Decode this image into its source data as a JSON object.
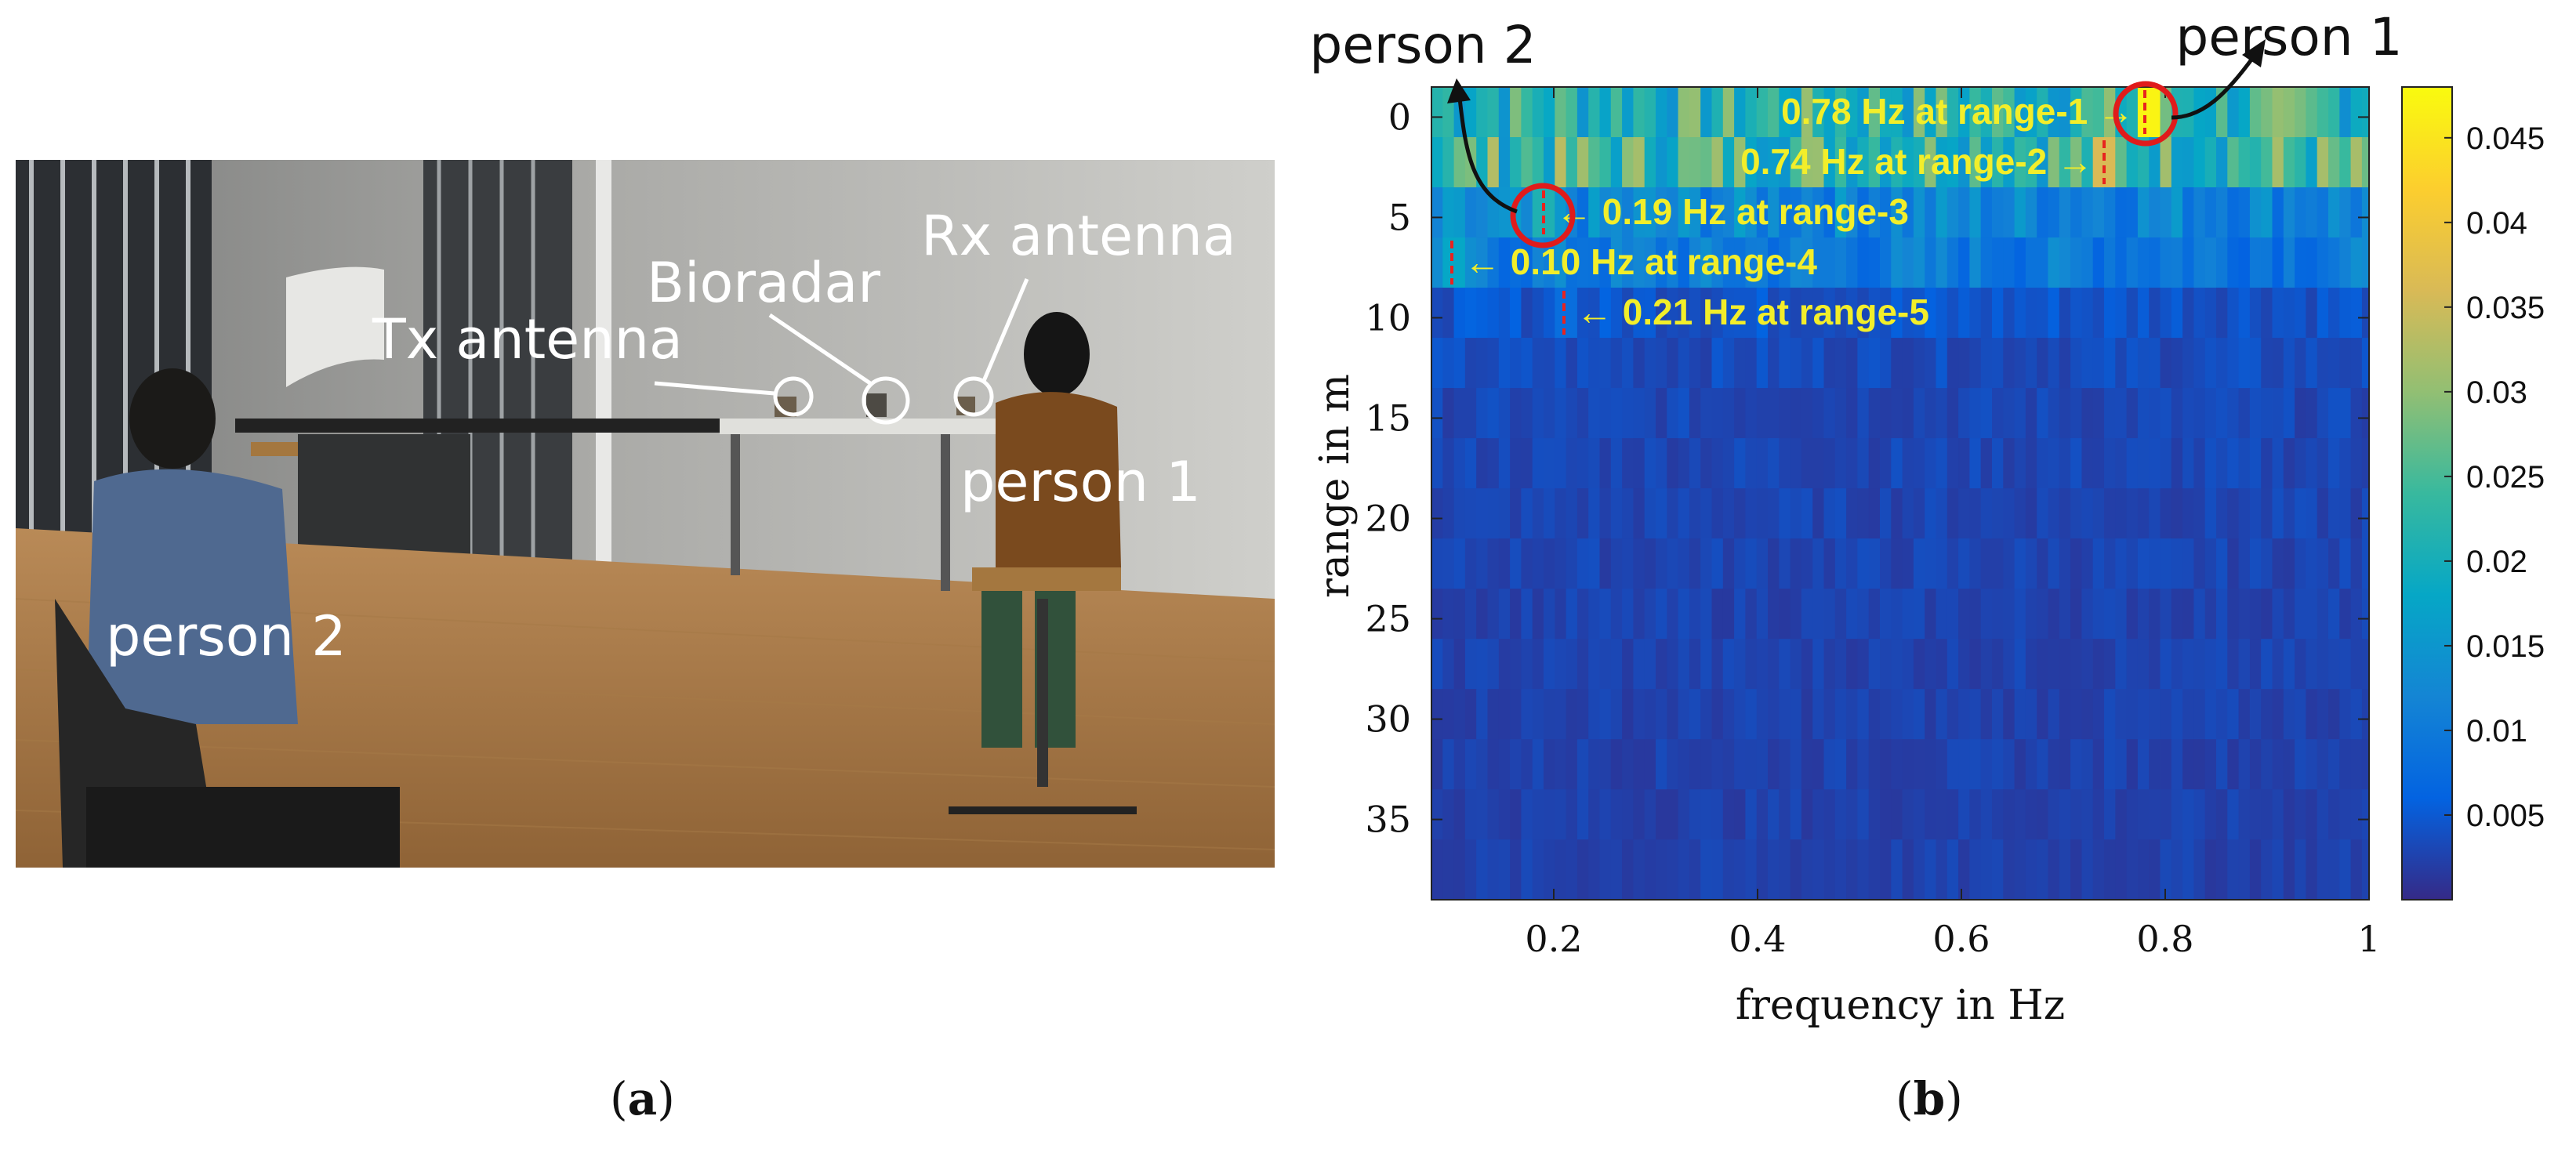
{
  "figure": {
    "label_a": "a",
    "label_b": "b"
  },
  "photo": {
    "labels": {
      "tx_antenna": "Tx antenna",
      "bioradar": "Bioradar",
      "rx_antenna": "Rx antenna",
      "person_1": "person 1",
      "person_2": "person 2"
    }
  },
  "chart_data": {
    "type": "heatmap",
    "title": "",
    "xlabel": "frequency in Hz",
    "ylabel": "range in m",
    "xlim": [
      0.08,
      1.0
    ],
    "ylim": [
      -1.5,
      39.0
    ],
    "x_ticks": [
      0.2,
      0.4,
      0.6,
      0.8,
      1
    ],
    "x_tick_labels": [
      "0.2",
      "0.4",
      "0.6",
      "0.8",
      "1"
    ],
    "y_ticks": [
      0,
      5,
      10,
      15,
      20,
      25,
      30,
      35
    ],
    "y_tick_labels": [
      "0",
      "5",
      "10",
      "15",
      "20",
      "25",
      "30",
      "35"
    ],
    "y_reversed": true,
    "colorbar": {
      "min": 0.0,
      "max": 0.048,
      "ticks": [
        0.005,
        0.01,
        0.015,
        0.02,
        0.025,
        0.03,
        0.035,
        0.04,
        0.045
      ],
      "tick_labels": [
        "0.005",
        "0.01",
        "0.015",
        "0.02",
        "0.025",
        "0.03",
        "0.035",
        "0.04",
        "0.045"
      ],
      "colormap": "parula"
    },
    "range_bin_edges": [
      -1.5,
      1.0,
      3.5,
      6.0,
      8.5,
      11.0,
      13.5,
      16.0,
      18.5,
      21.0,
      23.5,
      26.0,
      28.5,
      31.0,
      33.5,
      36.0,
      39.0
    ],
    "frequency_bin_width_hz": 0.011,
    "row_levels": [
      0.022,
      0.024,
      0.012,
      0.01,
      0.0045,
      0.0035,
      0.003,
      0.003,
      0.0028,
      0.0028,
      0.0026,
      0.0026,
      0.0025,
      0.0025,
      0.0024,
      0.0024
    ],
    "peaks": [
      {
        "label": "0.78 Hz at range-1",
        "frequency": 0.78,
        "range_bin": 1,
        "value": 0.047
      },
      {
        "label": "0.74 Hz at range-2",
        "frequency": 0.74,
        "range_bin": 2,
        "value": 0.036
      },
      {
        "label": "0.19 Hz at range-3",
        "frequency": 0.19,
        "range_bin": 3,
        "value": 0.021
      },
      {
        "label": "0.10 Hz at range-4",
        "frequency": 0.1,
        "range_bin": 4,
        "value": 0.018
      },
      {
        "label": "0.21 Hz at range-5",
        "frequency": 0.21,
        "range_bin": 5,
        "value": 0.008
      }
    ],
    "annotations": {
      "person_1": "person 1",
      "person_2": "person 2"
    },
    "colors": {
      "annotation_text": "#f2ee2a",
      "peak_marker": "#e8231f",
      "circle": "#e01b1b"
    }
  }
}
